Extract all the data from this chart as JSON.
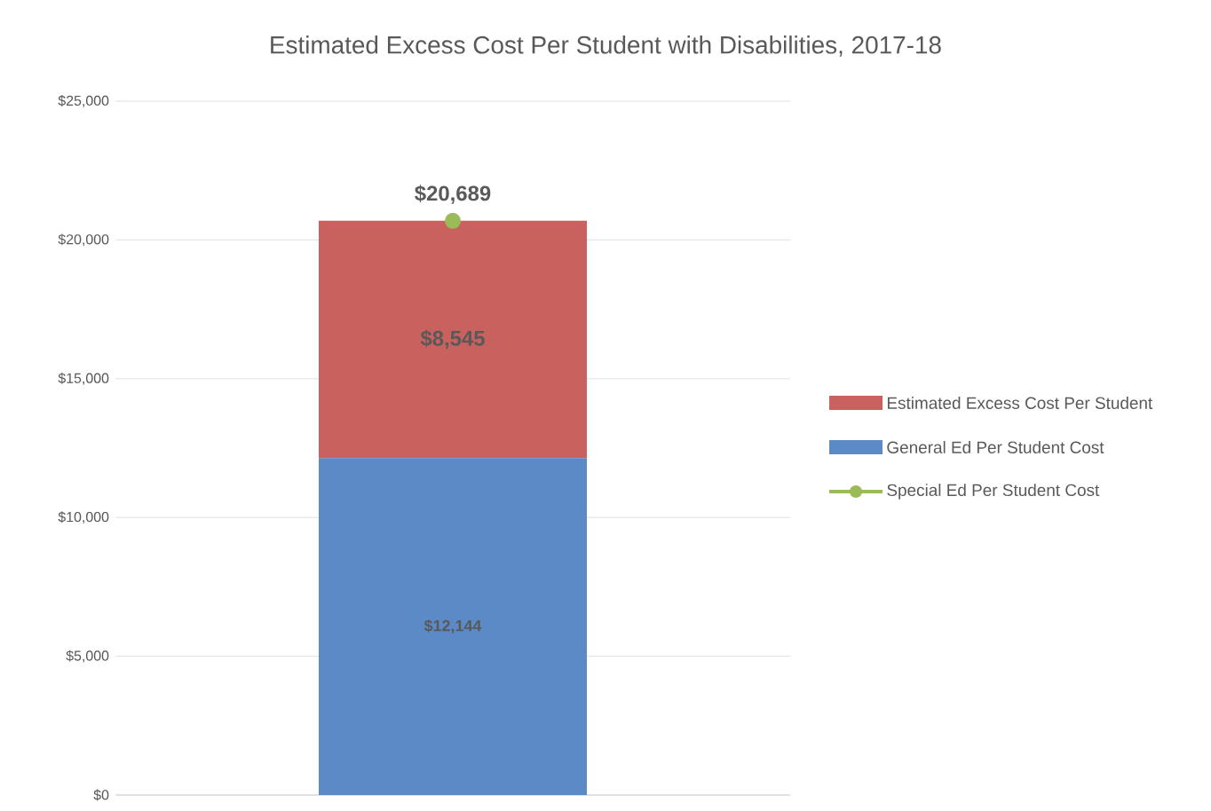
{
  "chart_data": {
    "type": "bar",
    "title": "Estimated Excess Cost Per Student with Disabilities, 2017-18",
    "categories": [
      null
    ],
    "stacked": true,
    "series": [
      {
        "name": "General Ed Per Student Cost",
        "color": "#5b8ac6",
        "values": [
          12144
        ],
        "value_labels": [
          "$12,144"
        ]
      },
      {
        "name": "Estimated Excess Cost Per Student",
        "color": "#c9625e",
        "values": [
          8545
        ],
        "value_labels": [
          "$8,545"
        ]
      },
      {
        "name": "Special Ed Per Student Cost",
        "type": "line",
        "marker": "circle",
        "color": "#9bbb59",
        "values": [
          20689
        ],
        "value_labels": [
          "$20,689"
        ]
      }
    ],
    "ylim": [
      0,
      25000
    ],
    "yticks": [
      {
        "value": 0,
        "label": "$0"
      },
      {
        "value": 5000,
        "label": "$5,000"
      },
      {
        "value": 10000,
        "label": "$10,000"
      },
      {
        "value": 15000,
        "label": "$15,000"
      },
      {
        "value": 20000,
        "label": "$20,000"
      },
      {
        "value": 25000,
        "label": "$25,000"
      }
    ],
    "grid": "y",
    "legend": "right"
  }
}
